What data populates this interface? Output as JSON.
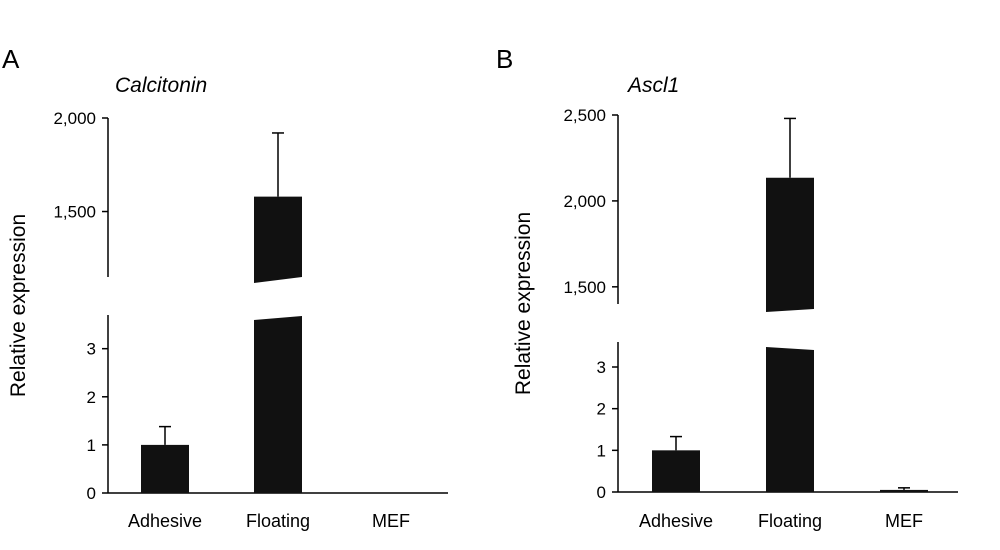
{
  "chart_data": [
    {
      "panel": "A",
      "type": "bar",
      "title": "Calcitonin",
      "ylabel": "Relative expression",
      "xlabel": "",
      "categories": [
        "Adhesive",
        "Floating",
        "MEF"
      ],
      "values": [
        1.0,
        1580,
        0
      ],
      "error_upper": [
        1.38,
        1920,
        0
      ],
      "broken_axis": true,
      "lower_ylim": [
        0,
        3.7
      ],
      "lower_ticks": [
        0,
        1,
        2,
        3
      ],
      "lower_tick_labels": [
        "0",
        "1",
        "2",
        "3"
      ],
      "upper_ylim": [
        1150,
        2000
      ],
      "upper_ticks": [
        1500,
        2000
      ],
      "upper_tick_labels": [
        "1,500",
        "2,000"
      ]
    },
    {
      "panel": "B",
      "type": "bar",
      "title": "Ascl1",
      "ylabel": "Relative expression",
      "xlabel": "",
      "categories": [
        "Adhesive",
        "Floating",
        "MEF"
      ],
      "values": [
        1.0,
        2135,
        0.05
      ],
      "error_upper": [
        1.33,
        2480,
        0.1
      ],
      "broken_axis": true,
      "lower_ylim": [
        0,
        3.6
      ],
      "lower_ticks": [
        0,
        1,
        2,
        3
      ],
      "lower_tick_labels": [
        "0",
        "1",
        "2",
        "3"
      ],
      "upper_ylim": [
        1400,
        2500
      ],
      "upper_ticks": [
        1500,
        2000,
        2500
      ],
      "upper_tick_labels": [
        "1,500",
        "2,000",
        "2,500"
      ]
    }
  ]
}
